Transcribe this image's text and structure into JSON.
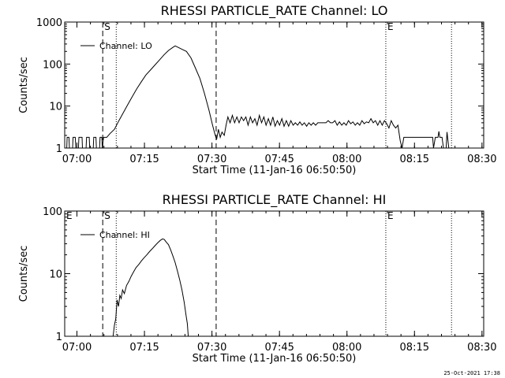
{
  "footer_timestamp": "25-Oct-2021 17:38",
  "chart_data": [
    {
      "type": "line",
      "title": "RHESSI PARTICLE_RATE Channel: LO",
      "xlabel": "Start Time (11-Jan-16 06:50:50)",
      "ylabel": "Counts/sec",
      "y_scale": "log",
      "ylim": [
        1,
        1000
      ],
      "yticks": [
        1,
        10,
        100,
        1000
      ],
      "ytick_labels": [
        "1",
        "10",
        "100",
        "1000"
      ],
      "xlim_minutes": [
        6.45,
        99.55
      ],
      "xticks_minutes": [
        9.17,
        24.17,
        39.17,
        54.17,
        69.17,
        84.17,
        99.17
      ],
      "xtick_labels": [
        "07:00",
        "07:15",
        "07:30",
        "07:45",
        "08:00",
        "08:15",
        "08:30"
      ],
      "legend": {
        "label": "Channel: LO",
        "position": "top-left"
      },
      "markers": [
        {
          "label": "S",
          "x_minutes": 14.9,
          "style": "dashed"
        },
        {
          "label": "",
          "x_minutes": 17.9,
          "style": "dotted"
        },
        {
          "label": "",
          "x_minutes": 40.1,
          "style": "dashed"
        },
        {
          "label": "E",
          "x_minutes": 77.8,
          "style": "dotted"
        },
        {
          "label": "",
          "x_minutes": 92.4,
          "style": "dotted"
        }
      ],
      "series": [
        {
          "name": "Channel: LO",
          "points": [
            [
              6.45,
              1
            ],
            [
              6.9,
              1
            ],
            [
              7.0,
              1.8
            ],
            [
              7.4,
              1.8
            ],
            [
              7.5,
              1
            ],
            [
              8.2,
              1
            ],
            [
              8.3,
              1.8
            ],
            [
              8.8,
              1.8
            ],
            [
              8.9,
              1
            ],
            [
              9.5,
              1
            ],
            [
              9.6,
              1.8
            ],
            [
              10.3,
              1.8
            ],
            [
              10.4,
              1
            ],
            [
              11.2,
              1
            ],
            [
              11.3,
              1.8
            ],
            [
              11.9,
              1.8
            ],
            [
              12.0,
              1
            ],
            [
              12.8,
              1
            ],
            [
              12.9,
              1.8
            ],
            [
              13.4,
              1.8
            ],
            [
              13.5,
              1
            ],
            [
              14.2,
              1
            ],
            [
              14.3,
              1.8
            ],
            [
              14.7,
              1.8
            ],
            [
              14.8,
              1
            ],
            [
              15.1,
              1.8
            ],
            [
              15.8,
              1.8
            ],
            [
              16.5,
              2.2
            ],
            [
              17.5,
              2.8
            ],
            [
              18.5,
              4.5
            ],
            [
              19.5,
              7
            ],
            [
              20.5,
              11
            ],
            [
              21.5,
              17
            ],
            [
              22.5,
              26
            ],
            [
              23.5,
              38
            ],
            [
              24.5,
              55
            ],
            [
              25.5,
              72
            ],
            [
              26.5,
              95
            ],
            [
              27.5,
              125
            ],
            [
              28.5,
              165
            ],
            [
              29.5,
              210
            ],
            [
              30.5,
              250
            ],
            [
              31.0,
              270
            ],
            [
              31.5,
              255
            ],
            [
              32.5,
              225
            ],
            [
              33.5,
              200
            ],
            [
              34.5,
              140
            ],
            [
              35.5,
              80
            ],
            [
              36.5,
              45
            ],
            [
              37.5,
              20
            ],
            [
              38.5,
              8
            ],
            [
              39.3,
              3.5
            ],
            [
              39.8,
              2.2
            ],
            [
              40.2,
              1.6
            ],
            [
              40.6,
              2.8
            ],
            [
              41.0,
              1.8
            ],
            [
              41.4,
              2.4
            ],
            [
              41.9,
              2.0
            ],
            [
              42.3,
              3.5
            ],
            [
              42.7,
              5.5
            ],
            [
              43.2,
              4.0
            ],
            [
              43.7,
              6.0
            ],
            [
              44.2,
              4.0
            ],
            [
              44.7,
              5.5
            ],
            [
              45.2,
              4.0
            ],
            [
              45.7,
              5.5
            ],
            [
              46.2,
              4.5
            ],
            [
              46.7,
              5.5
            ],
            [
              47.2,
              3.5
            ],
            [
              47.7,
              5.5
            ],
            [
              48.2,
              4.0
            ],
            [
              48.7,
              5.0
            ],
            [
              49.2,
              3.5
            ],
            [
              49.7,
              6.0
            ],
            [
              50.2,
              4.0
            ],
            [
              50.7,
              5.5
            ],
            [
              51.2,
              3.5
            ],
            [
              51.7,
              5.0
            ],
            [
              52.2,
              3.5
            ],
            [
              52.7,
              5.5
            ],
            [
              53.2,
              3.3
            ],
            [
              53.7,
              4.5
            ],
            [
              54.2,
              3.5
            ],
            [
              54.7,
              5.0
            ],
            [
              55.2,
              3.3
            ],
            [
              55.7,
              4.5
            ],
            [
              56.2,
              3.3
            ],
            [
              56.7,
              4.5
            ],
            [
              57.2,
              3.5
            ],
            [
              57.7,
              4.0
            ],
            [
              58.2,
              3.5
            ],
            [
              58.7,
              4.2
            ],
            [
              59.2,
              3.5
            ],
            [
              59.7,
              4.0
            ],
            [
              60.2,
              3.3
            ],
            [
              60.7,
              4.0
            ],
            [
              61.2,
              3.5
            ],
            [
              61.7,
              4.0
            ],
            [
              62.2,
              3.5
            ],
            [
              62.7,
              4.0
            ],
            [
              63.5,
              4.0
            ],
            [
              64.5,
              4.0
            ],
            [
              65.0,
              4.5
            ],
            [
              65.5,
              4.0
            ],
            [
              66.0,
              4.0
            ],
            [
              66.5,
              4.5
            ],
            [
              67.0,
              3.5
            ],
            [
              67.5,
              4.2
            ],
            [
              68.0,
              3.5
            ],
            [
              68.5,
              4.0
            ],
            [
              69.0,
              3.5
            ],
            [
              69.5,
              4.5
            ],
            [
              70.0,
              3.8
            ],
            [
              70.5,
              4.2
            ],
            [
              71.0,
              3.5
            ],
            [
              71.5,
              4.0
            ],
            [
              72.0,
              3.5
            ],
            [
              72.5,
              4.5
            ],
            [
              73.0,
              3.8
            ],
            [
              73.5,
              4.2
            ],
            [
              74.0,
              4.0
            ],
            [
              74.5,
              5.0
            ],
            [
              75.0,
              4.0
            ],
            [
              75.5,
              4.5
            ],
            [
              76.0,
              3.5
            ],
            [
              76.5,
              4.5
            ],
            [
              77.0,
              3.5
            ],
            [
              77.5,
              4.5
            ],
            [
              78.0,
              3.8
            ],
            [
              78.5,
              3.0
            ],
            [
              79.0,
              4.5
            ],
            [
              79.5,
              3.5
            ],
            [
              80.0,
              3.0
            ],
            [
              80.5,
              3.5
            ],
            [
              81.0,
              1.5
            ],
            [
              81.4,
              1.0
            ],
            [
              81.8,
              1.8
            ],
            [
              82.5,
              1.8
            ],
            [
              83.5,
              1.8
            ],
            [
              84.5,
              1.8
            ],
            [
              85.5,
              1.8
            ],
            [
              86.5,
              1.8
            ],
            [
              87.5,
              1.8
            ],
            [
              88.2,
              1.8
            ],
            [
              88.4,
              1.0
            ],
            [
              88.8,
              1.8
            ],
            [
              89.4,
              1.8
            ],
            [
              89.6,
              2.5
            ],
            [
              89.8,
              1.8
            ],
            [
              90.3,
              1.8
            ],
            [
              90.6,
              1.0
            ],
            [
              91.2,
              1.0
            ],
            [
              91.4,
              2.4
            ],
            [
              91.8,
              1.0
            ],
            [
              92.3,
              1.0
            ]
          ]
        }
      ]
    },
    {
      "type": "line",
      "title": "RHESSI PARTICLE_RATE Channel: HI",
      "xlabel": "Start Time (11-Jan-16 06:50:50)",
      "ylabel": "Counts/sec",
      "y_scale": "log",
      "ylim": [
        1,
        100
      ],
      "yticks": [
        1,
        10,
        100
      ],
      "ytick_labels": [
        "1",
        "10",
        "100"
      ],
      "xlim_minutes": [
        6.45,
        99.55
      ],
      "xticks_minutes": [
        9.17,
        24.17,
        39.17,
        54.17,
        69.17,
        84.17,
        99.17
      ],
      "xtick_labels": [
        "07:00",
        "07:15",
        "07:30",
        "07:45",
        "08:00",
        "08:15",
        "08:30"
      ],
      "legend": {
        "label": "Channel: HI",
        "position": "top-left"
      },
      "markers": [
        {
          "label": "E",
          "x_minutes": 6.45,
          "style": "none"
        },
        {
          "label": "S",
          "x_minutes": 14.9,
          "style": "dashed"
        },
        {
          "label": "",
          "x_minutes": 17.9,
          "style": "dotted"
        },
        {
          "label": "",
          "x_minutes": 40.1,
          "style": "dashed"
        },
        {
          "label": "E",
          "x_minutes": 77.8,
          "style": "dotted"
        },
        {
          "label": "",
          "x_minutes": 92.4,
          "style": "dotted"
        }
      ],
      "series": [
        {
          "name": "Channel: HI",
          "points": [
            [
              17.2,
              1.0
            ],
            [
              17.5,
              1.5
            ],
            [
              17.8,
              1.9
            ],
            [
              18.1,
              3.8
            ],
            [
              18.4,
              3.0
            ],
            [
              18.7,
              4.5
            ],
            [
              19.0,
              4.0
            ],
            [
              19.3,
              5.5
            ],
            [
              19.7,
              4.8
            ],
            [
              20.2,
              6.5
            ],
            [
              20.7,
              7.5
            ],
            [
              21.2,
              9.0
            ],
            [
              21.7,
              10.5
            ],
            [
              22.3,
              12.5
            ],
            [
              22.9,
              14
            ],
            [
              23.5,
              16
            ],
            [
              24.1,
              18
            ],
            [
              24.7,
              20
            ],
            [
              25.3,
              22.5
            ],
            [
              25.9,
              25
            ],
            [
              26.5,
              28
            ],
            [
              27.1,
              31
            ],
            [
              27.7,
              34
            ],
            [
              28.2,
              36
            ],
            [
              28.6,
              35
            ],
            [
              29.0,
              32
            ],
            [
              29.5,
              29
            ],
            [
              30.0,
              24
            ],
            [
              30.5,
              19
            ],
            [
              31.0,
              15
            ],
            [
              31.5,
              11
            ],
            [
              32.0,
              8
            ],
            [
              32.5,
              5.5
            ],
            [
              33.0,
              3.5
            ],
            [
              33.4,
              2.2
            ],
            [
              33.7,
              1.6
            ],
            [
              33.9,
              1.0
            ]
          ]
        }
      ]
    }
  ]
}
